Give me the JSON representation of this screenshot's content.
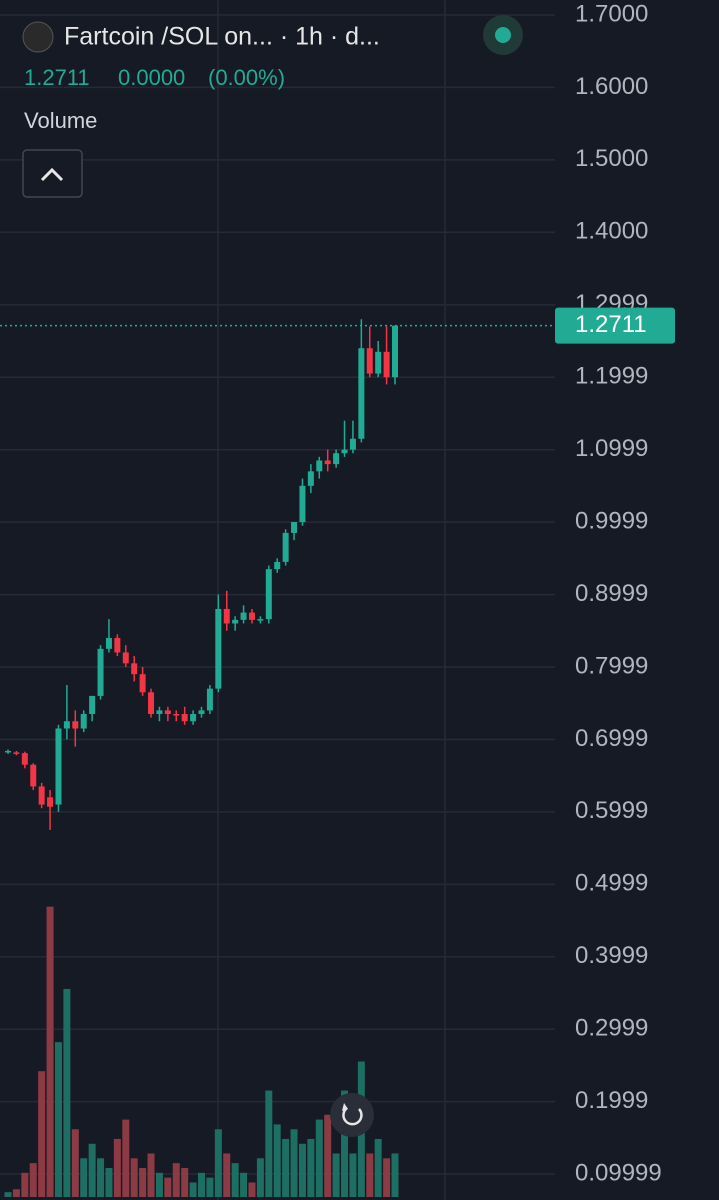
{
  "chart_data": {
    "type": "candlestick",
    "title": "Fartcoin /SOL on... · 1h · d...",
    "header": {
      "price": "1.2711",
      "change": "0.0000",
      "change_pct": "(0.00%)",
      "indicator": "Volume"
    },
    "up_color": "#22ab94",
    "down_color": "#f23645",
    "up_volume_color": "#1d6e63",
    "down_volume_color": "#8c3a43",
    "grid": true,
    "ylim": [
      0.0641,
      1.7207
    ],
    "yticks": [
      {
        "value": 1.7,
        "label": "1.7000"
      },
      {
        "value": 1.6,
        "label": "1.6000"
      },
      {
        "value": 1.5,
        "label": "1.5000"
      },
      {
        "value": 1.4,
        "label": "1.4000"
      },
      1.2999,
      1.1999,
      1.0999,
      0.9999,
      0.8999,
      0.7999,
      0.6999,
      0.5999,
      0.4999,
      0.3999,
      0.2999,
      0.1999,
      0.09999
    ],
    "last_price": 1.2711,
    "volume_ylim": [
      0,
      310
    ],
    "open": [
      0.683,
      0.682,
      0.681,
      0.665,
      0.635,
      0.62,
      0.61,
      0.715,
      0.725,
      0.715,
      0.735,
      0.76,
      0.825,
      0.84,
      0.82,
      0.805,
      0.79,
      0.765,
      0.735,
      0.74,
      0.735,
      0.735,
      0.725,
      0.735,
      0.74,
      0.77,
      0.88,
      0.86,
      0.865,
      0.875,
      0.865,
      0.866,
      0.935,
      0.945,
      0.985,
      1.0,
      1.05,
      1.07,
      1.085,
      1.08,
      1.095,
      1.1,
      1.115,
      1.24,
      1.205,
      1.235,
      1.2
    ],
    "high": [
      0.686,
      0.684,
      0.683,
      0.667,
      0.64,
      0.63,
      0.72,
      0.775,
      0.74,
      0.74,
      0.76,
      0.83,
      0.866,
      0.845,
      0.83,
      0.815,
      0.8,
      0.77,
      0.745,
      0.745,
      0.74,
      0.745,
      0.74,
      0.745,
      0.775,
      0.9,
      0.905,
      0.87,
      0.885,
      0.88,
      0.87,
      0.94,
      0.95,
      0.99,
      1.0,
      1.06,
      1.08,
      1.09,
      1.1,
      1.1,
      1.14,
      1.14,
      1.28,
      1.27,
      1.25,
      1.27,
      1.2711
    ],
    "low": [
      0.68,
      0.678,
      0.66,
      0.63,
      0.605,
      0.575,
      0.6,
      0.7,
      0.69,
      0.71,
      0.725,
      0.755,
      0.82,
      0.815,
      0.8,
      0.78,
      0.76,
      0.73,
      0.725,
      0.725,
      0.725,
      0.72,
      0.72,
      0.73,
      0.735,
      0.765,
      0.85,
      0.85,
      0.86,
      0.86,
      0.86,
      0.86,
      0.93,
      0.94,
      0.975,
      0.995,
      1.04,
      1.06,
      1.07,
      1.075,
      1.09,
      1.095,
      1.11,
      1.2,
      1.2,
      1.19,
      1.19
    ],
    "close": [
      0.684,
      0.681,
      0.665,
      0.635,
      0.61,
      0.607,
      0.715,
      0.725,
      0.715,
      0.735,
      0.76,
      0.825,
      0.84,
      0.82,
      0.805,
      0.79,
      0.765,
      0.735,
      0.74,
      0.735,
      0.734,
      0.725,
      0.735,
      0.74,
      0.77,
      0.88,
      0.86,
      0.865,
      0.875,
      0.865,
      0.866,
      0.935,
      0.945,
      0.985,
      1.0,
      1.05,
      1.07,
      1.085,
      1.08,
      1.095,
      1.1,
      1.115,
      1.24,
      1.205,
      1.235,
      1.2,
      1.2711
    ],
    "volume": [
      5,
      8,
      25,
      35,
      130,
      300,
      160,
      215,
      70,
      40,
      55,
      40,
      30,
      60,
      80,
      40,
      30,
      45,
      25,
      20,
      35,
      30,
      15,
      25,
      20,
      70,
      45,
      35,
      25,
      15,
      40,
      110,
      75,
      60,
      70,
      55,
      60,
      80,
      85,
      45,
      110,
      45,
      140,
      45,
      60,
      40,
      45
    ]
  }
}
